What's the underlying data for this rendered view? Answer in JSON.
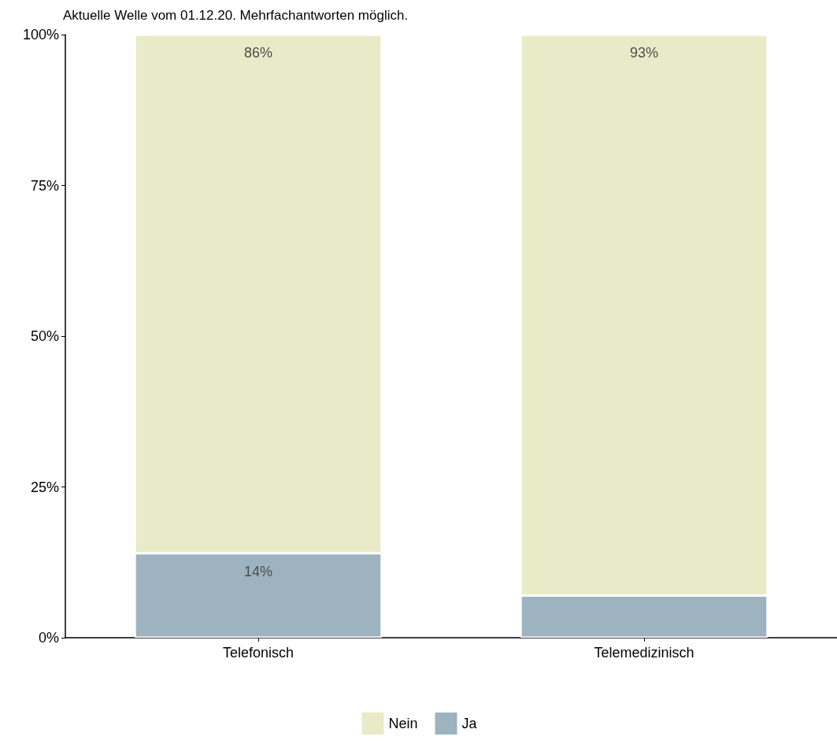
{
  "chart_data": {
    "type": "bar",
    "title": "Aktuelle Welle vom 01.12.20. Mehrfachantworten möglich.",
    "categories": [
      "Telefonisch",
      "Telemedizinisch"
    ],
    "stacked": true,
    "series": [
      {
        "name": "Ja",
        "color": "#9db3c0",
        "values": [
          14,
          7
        ],
        "value_labels": [
          "14%",
          null
        ]
      },
      {
        "name": "Nein",
        "color": "#e9ebc8",
        "values": [
          86,
          93
        ],
        "value_labels": [
          "86%",
          "93%"
        ]
      }
    ],
    "ylim": [
      0,
      100
    ],
    "yticks": [
      {
        "value": 0,
        "label": "0%"
      },
      {
        "value": 25,
        "label": "25%"
      },
      {
        "value": 50,
        "label": "50%"
      },
      {
        "value": 75,
        "label": "75%"
      },
      {
        "value": 100,
        "label": "100%"
      }
    ],
    "grid": false,
    "legend": "bottom"
  }
}
